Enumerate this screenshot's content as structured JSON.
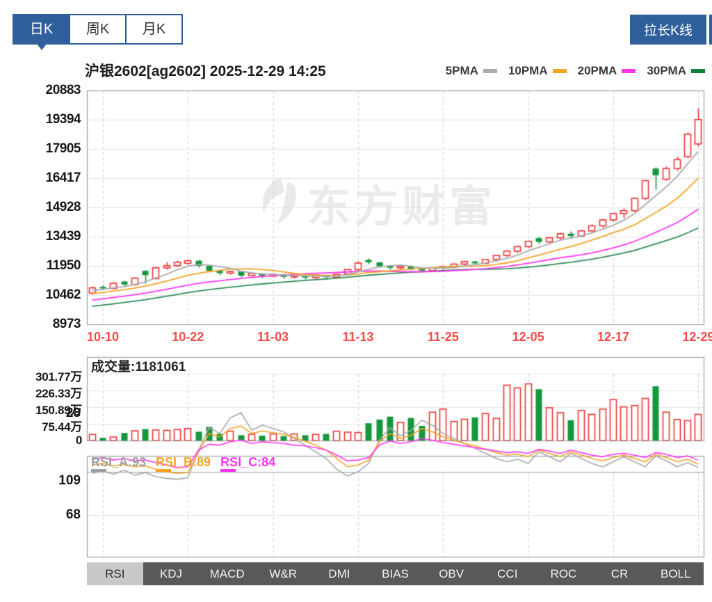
{
  "header": {
    "period_tabs": [
      {
        "label": "日K",
        "active": true
      },
      {
        "label": "周K",
        "active": false
      },
      {
        "label": "月K",
        "active": false
      }
    ],
    "stretch_button": "拉长K线"
  },
  "chart_header": {
    "title": "沪银2602[ag2602] 2025-12-29 14:25",
    "legend": [
      {
        "label": "5PMA",
        "color": "#ababab"
      },
      {
        "label": "10PMA",
        "color": "#f5a425"
      },
      {
        "label": "20PMA",
        "color": "#ff35f1"
      },
      {
        "label": "30PMA",
        "color": "#0e8040"
      }
    ]
  },
  "watermark": {
    "text": "东方财富"
  },
  "volume_pane": {
    "text": "成交量:1181061",
    "y_labels": [
      "301.77万",
      "226.33万",
      "150.89万",
      "75.44万",
      "0"
    ]
  },
  "rsi_pane": {
    "labels": [
      {
        "text": "RSI_A:93",
        "color": "#a0a0a0"
      },
      {
        "text": "RSI_B:89",
        "color": "#f5a425"
      },
      {
        "text": "RSI_C:84",
        "color": "#ff35f1"
      }
    ],
    "y_labels": [
      "109",
      "68",
      "28"
    ]
  },
  "indicator_tabs": {
    "items": [
      "RSI",
      "KDJ",
      "MACD",
      "W&R",
      "DMI",
      "BIAS",
      "OBV",
      "CCI",
      "ROC",
      "CR",
      "BOLL"
    ],
    "active": "RSI"
  },
  "colors": {
    "up": "#ee3333",
    "down": "#16973e",
    "accent_blue": "#30609c",
    "grid": "#e3e3e3",
    "grid_dash": "#cfcfcf",
    "border": "#9e9e9e",
    "ma5": "#ababab",
    "ma10": "#f5a425",
    "ma20": "#ff35f1",
    "ma30": "#2e8b57",
    "date_label": "#f84848"
  },
  "chart_data": {
    "type": "candlestick",
    "instrument": "沪银2602 [ag2602]",
    "datetime": "2025-12-29 14:25",
    "price_axis": {
      "max": 20883,
      "min": 8973,
      "ticks": [
        20883,
        19394,
        17905,
        16417,
        14928,
        13439,
        11950,
        10462,
        8973
      ]
    },
    "x_ticks": {
      "indices": [
        1,
        9,
        17,
        25,
        33,
        41,
        49,
        57
      ],
      "labels": [
        "10-10",
        "10-22",
        "11-03",
        "11-13",
        "11-25",
        "12-05",
        "12-17",
        "12-29"
      ]
    },
    "candles_format": [
      "date",
      "open",
      "high",
      "low",
      "close",
      "volume_wan"
    ],
    "candles": [
      [
        "10-09",
        10560,
        10920,
        10480,
        10830,
        28
      ],
      [
        "10-10",
        10880,
        10980,
        10740,
        10800,
        12
      ],
      [
        "10-13",
        10800,
        11120,
        10780,
        11060,
        16
      ],
      [
        "10-14",
        11150,
        11220,
        10900,
        11000,
        34
      ],
      [
        "10-15",
        11000,
        11380,
        10950,
        11330,
        44
      ],
      [
        "10-16",
        11700,
        11750,
        11050,
        11480,
        52
      ],
      [
        "10-17",
        11300,
        11900,
        11280,
        11850,
        48
      ],
      [
        "10-20",
        11850,
        12150,
        11780,
        11960,
        46
      ],
      [
        "10-21",
        11960,
        12250,
        11900,
        12130,
        50
      ],
      [
        "10-22",
        12080,
        12260,
        12020,
        12210,
        54
      ],
      [
        "10-23",
        12210,
        12260,
        11880,
        11950,
        40
      ],
      [
        "10-24",
        11950,
        12000,
        11620,
        11700,
        62
      ],
      [
        "10-27",
        11700,
        11780,
        11500,
        11580,
        30
      ],
      [
        "10-28",
        11580,
        11720,
        11520,
        11660,
        42
      ],
      [
        "10-29",
        11660,
        11700,
        11380,
        11450,
        24
      ],
      [
        "10-30",
        11450,
        11620,
        11410,
        11560,
        28
      ],
      [
        "10-31",
        11560,
        11600,
        11360,
        11430,
        22
      ],
      [
        "11-03",
        11430,
        11580,
        11400,
        11520,
        30
      ],
      [
        "11-04",
        11520,
        11560,
        11310,
        11390,
        20
      ],
      [
        "11-05",
        11390,
        11510,
        11330,
        11460,
        30
      ],
      [
        "11-06",
        11460,
        11490,
        11280,
        11350,
        24
      ],
      [
        "11-07",
        11350,
        11510,
        11310,
        11470,
        28
      ],
      [
        "11-10",
        11470,
        11500,
        11290,
        11370,
        30
      ],
      [
        "11-11",
        11370,
        11570,
        11340,
        11530,
        42
      ],
      [
        "11-12",
        11530,
        11810,
        11490,
        11760,
        38
      ],
      [
        "11-13",
        11760,
        12190,
        11710,
        12090,
        36
      ],
      [
        "11-14",
        12260,
        12330,
        12060,
        12130,
        78
      ],
      [
        "11-17",
        12130,
        12170,
        11870,
        11940,
        95
      ],
      [
        "11-18",
        11940,
        12000,
        11770,
        11850,
        108
      ],
      [
        "11-19",
        11850,
        11990,
        11790,
        11930,
        82
      ],
      [
        "11-20",
        11930,
        11970,
        11730,
        11800,
        102
      ],
      [
        "11-21",
        11800,
        11860,
        11650,
        11710,
        66
      ],
      [
        "11-24",
        11710,
        11890,
        11680,
        11850,
        128
      ],
      [
        "11-25",
        11850,
        11970,
        11790,
        11910,
        142
      ],
      [
        "11-26",
        11910,
        12090,
        11860,
        12040,
        86
      ],
      [
        "11-27",
        12040,
        12230,
        11990,
        12170,
        96
      ],
      [
        "11-28",
        12170,
        12240,
        12010,
        12080,
        105
      ],
      [
        "12-01",
        12080,
        12310,
        12040,
        12270,
        122
      ],
      [
        "12-02",
        12270,
        12530,
        12210,
        12480,
        100
      ],
      [
        "12-03",
        12480,
        12760,
        12410,
        12700,
        250
      ],
      [
        "12-04",
        12700,
        12990,
        12610,
        12930,
        238
      ],
      [
        "12-05",
        12930,
        13270,
        12860,
        13200,
        256
      ],
      [
        "12-08",
        13360,
        13430,
        13090,
        13170,
        232
      ],
      [
        "12-09",
        13170,
        13430,
        13110,
        13380,
        148
      ],
      [
        "12-10",
        13380,
        13650,
        13310,
        13590,
        126
      ],
      [
        "12-11",
        13590,
        13710,
        13390,
        13470,
        92
      ],
      [
        "12-12",
        13470,
        13790,
        13430,
        13730,
        136
      ],
      [
        "12-15",
        13730,
        14060,
        13670,
        13990,
        118
      ],
      [
        "12-16",
        13990,
        14360,
        13910,
        14290,
        142
      ],
      [
        "12-17",
        14290,
        14690,
        14210,
        14610,
        185
      ],
      [
        "12-18",
        14610,
        14900,
        14390,
        14760,
        152
      ],
      [
        "12-19",
        14760,
        15460,
        14710,
        15390,
        158
      ],
      [
        "12-22",
        15390,
        16360,
        15310,
        16290,
        190
      ],
      [
        "12-23",
        16910,
        16990,
        15860,
        16560,
        245
      ],
      [
        "12-24",
        16360,
        17010,
        16310,
        16910,
        128
      ],
      [
        "12-25",
        16910,
        17510,
        16810,
        17360,
        95
      ],
      [
        "12-26",
        17510,
        18760,
        17430,
        18660,
        90
      ],
      [
        "12-29",
        18160,
        19990,
        18060,
        19400,
        118
      ]
    ],
    "ma_series": [
      {
        "name": "5PMA",
        "period": 5,
        "color": "#ababab"
      },
      {
        "name": "10PMA",
        "period": 10,
        "color": "#f5a425"
      },
      {
        "name": "20PMA",
        "period": 20,
        "color": "#ff35f1"
      },
      {
        "name": "30PMA",
        "period": 30,
        "color": "#2e8b57"
      }
    ],
    "volume_axis": {
      "max_wan": 301.77,
      "ticks_wan": [
        301.77,
        226.33,
        150.89,
        75.44,
        0
      ]
    },
    "current_volume": 1181061,
    "rsi": {
      "axis_ticks": [
        109,
        68,
        28
      ],
      "series": [
        {
          "name": "RSI_A",
          "value": 93,
          "color": "#a8a8a8",
          "values": [
            100,
            97,
            101,
            96,
            102,
            99,
            104,
            106,
            107,
            105,
            72,
            45,
            52,
            33,
            27,
            48,
            42,
            46,
            50,
            58,
            66,
            74,
            82,
            95,
            103,
            98,
            88,
            60,
            45,
            55,
            48,
            36,
            42,
            52,
            58,
            64,
            70,
            76,
            82,
            86,
            83,
            88,
            74,
            80,
            86,
            76,
            82,
            88,
            92,
            86,
            80,
            86,
            92,
            79,
            85,
            92,
            87,
            93
          ]
        },
        {
          "name": "RSI_B",
          "value": 89,
          "color": "#f5a425",
          "values": [
            90,
            88,
            91,
            89,
            92,
            91,
            95,
            98,
            100,
            99,
            74,
            52,
            56,
            46,
            43,
            52,
            49,
            51,
            53,
            57,
            61,
            66,
            72,
            82,
            92,
            90,
            84,
            62,
            52,
            58,
            54,
            46,
            50,
            56,
            60,
            64,
            67,
            71,
            75,
            78,
            77,
            80,
            72,
            76,
            80,
            74,
            78,
            82,
            85,
            81,
            78,
            82,
            86,
            77,
            81,
            86,
            83,
            89
          ]
        },
        {
          "name": "RSI_C",
          "value": 84,
          "color": "#ff35f1",
          "values": [
            83,
            81,
            84,
            82,
            85,
            84,
            87,
            90,
            93,
            92,
            72,
            65,
            66,
            62,
            60,
            64,
            62,
            63,
            64,
            66,
            67,
            69,
            72,
            78,
            85,
            84,
            81,
            66,
            61,
            64,
            62,
            58,
            60,
            63,
            65,
            67,
            69,
            71,
            73,
            75,
            74,
            76,
            71,
            73,
            76,
            72,
            75,
            78,
            80,
            77,
            76,
            78,
            81,
            75,
            77,
            81,
            79,
            84
          ]
        }
      ]
    }
  }
}
